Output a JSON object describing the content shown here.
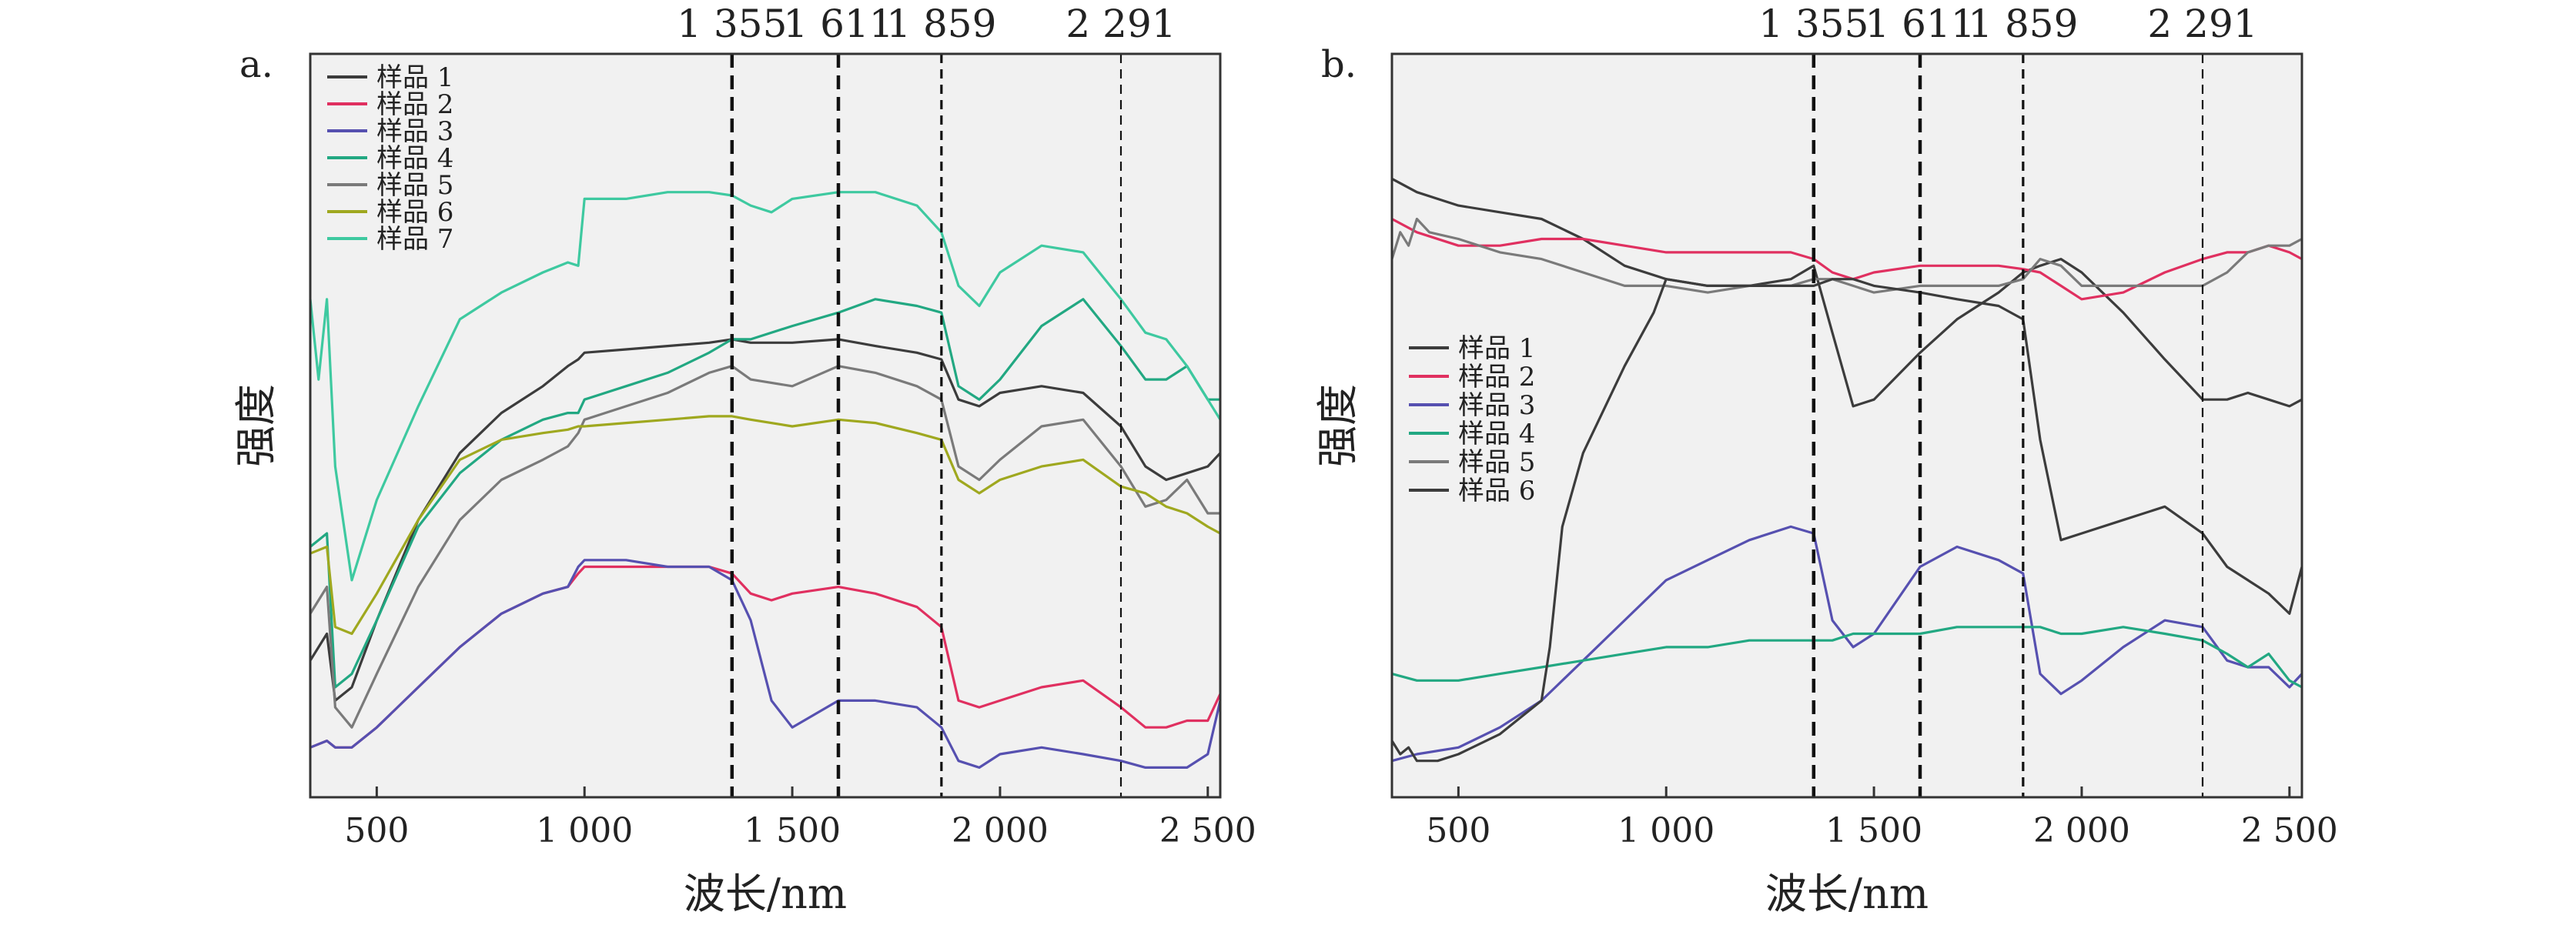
{
  "colors": {
    "sample1": "#3c3c3c",
    "sample2": "#e03060",
    "sample3": "#5650b0",
    "sample4": "#22a882",
    "sample5": "#7a7a7a",
    "sample6": "#9fa81f",
    "sample7": "#3ec9a0",
    "frame": "#333333",
    "plot_bg": "#f1f1f1",
    "guide": "#111111"
  },
  "chart_data": [
    {
      "panel_label": "a.",
      "type": "line",
      "xlabel": "波长/nm",
      "ylabel": "强度",
      "xlim": [
        340,
        2530
      ],
      "ylim": [
        0,
        1
      ],
      "x_ticks": [
        500,
        1000,
        1500,
        2000,
        2500
      ],
      "x_tick_labels": [
        "500",
        "1 000",
        "1 500",
        "2 000",
        "2 500"
      ],
      "y_ticks_shown": false,
      "grid": false,
      "legend_position": "top-left",
      "vlines": [
        {
          "x": 1355,
          "label": "1 355"
        },
        {
          "x": 1611,
          "label": "1 611"
        },
        {
          "x": 1859,
          "label": "1 859"
        },
        {
          "x": 2291,
          "label": "2 291"
        }
      ],
      "series": [
        {
          "name": "样品 1",
          "color_key": "sample1",
          "x": [
            340,
            380,
            400,
            440,
            500,
            600,
            700,
            800,
            900,
            960,
            985,
            1000,
            1100,
            1200,
            1300,
            1355,
            1400,
            1500,
            1611,
            1700,
            1800,
            1859,
            1900,
            1950,
            2000,
            2100,
            2200,
            2291,
            2350,
            2400,
            2450,
            2500,
            2530
          ],
          "y": [
            0.16,
            0.2,
            0.1,
            0.12,
            0.22,
            0.37,
            0.47,
            0.53,
            0.57,
            0.6,
            0.61,
            0.62,
            0.625,
            0.63,
            0.635,
            0.64,
            0.635,
            0.635,
            0.64,
            0.63,
            0.62,
            0.61,
            0.55,
            0.54,
            0.56,
            0.57,
            0.56,
            0.51,
            0.45,
            0.43,
            0.44,
            0.45,
            0.47
          ]
        },
        {
          "name": "样品 2",
          "color_key": "sample2",
          "x": [
            340,
            380,
            400,
            440,
            500,
            600,
            700,
            800,
            900,
            960,
            985,
            1000,
            1100,
            1200,
            1300,
            1355,
            1400,
            1450,
            1500,
            1611,
            1700,
            1800,
            1859,
            1900,
            1950,
            2000,
            2100,
            2200,
            2291,
            2350,
            2400,
            2450,
            2500,
            2530
          ],
          "y": [
            0.03,
            0.04,
            0.03,
            0.03,
            0.06,
            0.12,
            0.18,
            0.23,
            0.26,
            0.27,
            0.29,
            0.3,
            0.3,
            0.3,
            0.3,
            0.29,
            0.26,
            0.25,
            0.26,
            0.27,
            0.26,
            0.24,
            0.21,
            0.1,
            0.09,
            0.1,
            0.12,
            0.13,
            0.09,
            0.06,
            0.06,
            0.07,
            0.07,
            0.11
          ]
        },
        {
          "name": "样品 3",
          "color_key": "sample3",
          "x": [
            340,
            380,
            400,
            440,
            500,
            600,
            700,
            800,
            900,
            960,
            985,
            1000,
            1100,
            1200,
            1300,
            1355,
            1400,
            1450,
            1500,
            1611,
            1700,
            1800,
            1859,
            1900,
            1950,
            2000,
            2100,
            2200,
            2291,
            2350,
            2400,
            2450,
            2500,
            2530
          ],
          "y": [
            0.03,
            0.04,
            0.03,
            0.03,
            0.06,
            0.12,
            0.18,
            0.23,
            0.26,
            0.27,
            0.3,
            0.31,
            0.31,
            0.3,
            0.3,
            0.28,
            0.22,
            0.1,
            0.06,
            0.1,
            0.1,
            0.09,
            0.06,
            0.01,
            0.0,
            0.02,
            0.03,
            0.02,
            0.01,
            0.0,
            0.0,
            0.0,
            0.02,
            0.1
          ]
        },
        {
          "name": "样品 4",
          "color_key": "sample4",
          "x": [
            340,
            380,
            400,
            440,
            500,
            600,
            700,
            800,
            900,
            960,
            985,
            1000,
            1100,
            1200,
            1300,
            1355,
            1400,
            1500,
            1611,
            1700,
            1800,
            1859,
            1900,
            1950,
            2000,
            2100,
            2200,
            2291,
            2350,
            2400,
            2450,
            2500,
            2530
          ],
          "y": [
            0.33,
            0.35,
            0.12,
            0.14,
            0.22,
            0.36,
            0.44,
            0.49,
            0.52,
            0.53,
            0.53,
            0.55,
            0.57,
            0.59,
            0.62,
            0.64,
            0.64,
            0.66,
            0.68,
            0.7,
            0.69,
            0.68,
            0.57,
            0.55,
            0.58,
            0.66,
            0.7,
            0.63,
            0.58,
            0.58,
            0.6,
            0.55,
            0.55
          ]
        },
        {
          "name": "样品 5",
          "color_key": "sample5",
          "x": [
            340,
            380,
            400,
            440,
            500,
            600,
            700,
            800,
            900,
            960,
            985,
            1000,
            1100,
            1200,
            1300,
            1355,
            1400,
            1500,
            1611,
            1700,
            1800,
            1859,
            1900,
            1950,
            2000,
            2100,
            2200,
            2291,
            2350,
            2400,
            2450,
            2500,
            2530
          ],
          "y": [
            0.23,
            0.27,
            0.09,
            0.06,
            0.14,
            0.27,
            0.37,
            0.43,
            0.46,
            0.48,
            0.5,
            0.52,
            0.54,
            0.56,
            0.59,
            0.6,
            0.58,
            0.57,
            0.6,
            0.59,
            0.57,
            0.55,
            0.45,
            0.43,
            0.46,
            0.51,
            0.52,
            0.45,
            0.39,
            0.4,
            0.43,
            0.38,
            0.38
          ]
        },
        {
          "name": "样品 6",
          "color_key": "sample6",
          "x": [
            340,
            380,
            400,
            440,
            500,
            600,
            700,
            800,
            900,
            960,
            985,
            1000,
            1100,
            1200,
            1300,
            1355,
            1400,
            1500,
            1611,
            1700,
            1800,
            1859,
            1900,
            1950,
            2000,
            2100,
            2200,
            2291,
            2350,
            2400,
            2450,
            2500,
            2530
          ],
          "y": [
            0.32,
            0.33,
            0.21,
            0.2,
            0.26,
            0.37,
            0.46,
            0.49,
            0.5,
            0.505,
            0.51,
            0.51,
            0.515,
            0.52,
            0.525,
            0.525,
            0.52,
            0.51,
            0.52,
            0.515,
            0.5,
            0.49,
            0.43,
            0.41,
            0.43,
            0.45,
            0.46,
            0.42,
            0.41,
            0.39,
            0.38,
            0.36,
            0.35
          ]
        },
        {
          "name": "样品 7",
          "color_key": "sample7",
          "x": [
            340,
            360,
            380,
            400,
            440,
            500,
            600,
            700,
            800,
            900,
            960,
            985,
            1000,
            1100,
            1200,
            1300,
            1355,
            1400,
            1450,
            1500,
            1611,
            1700,
            1800,
            1859,
            1900,
            1950,
            2000,
            2100,
            2200,
            2291,
            2350,
            2400,
            2450,
            2500,
            2530
          ],
          "y": [
            0.7,
            0.58,
            0.7,
            0.45,
            0.28,
            0.4,
            0.54,
            0.67,
            0.71,
            0.74,
            0.755,
            0.75,
            0.85,
            0.85,
            0.86,
            0.86,
            0.855,
            0.84,
            0.83,
            0.85,
            0.86,
            0.86,
            0.84,
            0.8,
            0.72,
            0.69,
            0.74,
            0.78,
            0.77,
            0.7,
            0.65,
            0.64,
            0.6,
            0.55,
            0.52
          ]
        }
      ]
    },
    {
      "panel_label": "b.",
      "type": "line",
      "xlabel": "波长/nm",
      "ylabel": "强度",
      "xlim": [
        340,
        2530
      ],
      "ylim": [
        0,
        1
      ],
      "x_ticks": [
        500,
        1000,
        1500,
        2000,
        2500
      ],
      "x_tick_labels": [
        "500",
        "1 000",
        "1 500",
        "2 000",
        "2 500"
      ],
      "y_ticks_shown": false,
      "grid": false,
      "legend_position": "center-left",
      "vlines": [
        {
          "x": 1355,
          "label": "1 355"
        },
        {
          "x": 1611,
          "label": "1 611"
        },
        {
          "x": 1859,
          "label": "1 859"
        },
        {
          "x": 2291,
          "label": "2 291"
        }
      ],
      "series": [
        {
          "name": "样品 1",
          "color_key": "sample1",
          "x": [
            340,
            400,
            500,
            600,
            700,
            800,
            900,
            1000,
            1100,
            1200,
            1300,
            1355,
            1400,
            1450,
            1500,
            1611,
            1700,
            1800,
            1859,
            1900,
            1950,
            2000,
            2100,
            2200,
            2291,
            2350,
            2400,
            2450,
            2500,
            2530
          ],
          "y": [
            0.88,
            0.86,
            0.84,
            0.83,
            0.82,
            0.79,
            0.75,
            0.73,
            0.72,
            0.72,
            0.73,
            0.75,
            0.65,
            0.54,
            0.55,
            0.62,
            0.67,
            0.71,
            0.74,
            0.75,
            0.76,
            0.74,
            0.68,
            0.61,
            0.55,
            0.55,
            0.56,
            0.55,
            0.54,
            0.55
          ]
        },
        {
          "name": "样品 2",
          "color_key": "sample2",
          "x": [
            340,
            400,
            500,
            600,
            700,
            800,
            900,
            1000,
            1100,
            1200,
            1300,
            1355,
            1400,
            1450,
            1500,
            1611,
            1700,
            1800,
            1859,
            1900,
            1950,
            2000,
            2100,
            2200,
            2291,
            2350,
            2400,
            2450,
            2500,
            2530
          ],
          "y": [
            0.82,
            0.8,
            0.78,
            0.78,
            0.79,
            0.79,
            0.78,
            0.77,
            0.77,
            0.77,
            0.77,
            0.76,
            0.74,
            0.73,
            0.74,
            0.75,
            0.75,
            0.75,
            0.745,
            0.74,
            0.72,
            0.7,
            0.71,
            0.74,
            0.76,
            0.77,
            0.77,
            0.78,
            0.77,
            0.76
          ]
        },
        {
          "name": "样品 3",
          "color_key": "sample3",
          "x": [
            340,
            400,
            500,
            600,
            700,
            800,
            900,
            1000,
            1100,
            1200,
            1300,
            1355,
            1400,
            1450,
            1500,
            1611,
            1700,
            1800,
            1859,
            1900,
            1950,
            2000,
            2100,
            2200,
            2291,
            2350,
            2400,
            2450,
            2500,
            2530
          ],
          "y": [
            0.01,
            0.02,
            0.03,
            0.06,
            0.1,
            0.16,
            0.22,
            0.28,
            0.31,
            0.34,
            0.36,
            0.35,
            0.22,
            0.18,
            0.2,
            0.3,
            0.33,
            0.31,
            0.29,
            0.14,
            0.11,
            0.13,
            0.18,
            0.22,
            0.21,
            0.16,
            0.15,
            0.15,
            0.12,
            0.14
          ]
        },
        {
          "name": "样品 4",
          "color_key": "sample4",
          "x": [
            340,
            400,
            500,
            600,
            700,
            800,
            900,
            1000,
            1100,
            1200,
            1300,
            1355,
            1400,
            1450,
            1500,
            1611,
            1700,
            1800,
            1859,
            1900,
            1950,
            2000,
            2100,
            2200,
            2291,
            2350,
            2400,
            2450,
            2500,
            2530
          ],
          "y": [
            0.14,
            0.13,
            0.13,
            0.14,
            0.15,
            0.16,
            0.17,
            0.18,
            0.18,
            0.19,
            0.19,
            0.19,
            0.19,
            0.2,
            0.2,
            0.2,
            0.21,
            0.21,
            0.21,
            0.21,
            0.2,
            0.2,
            0.21,
            0.2,
            0.19,
            0.17,
            0.15,
            0.17,
            0.13,
            0.12
          ]
        },
        {
          "name": "样品 5",
          "color_key": "sample5",
          "x": [
            340,
            360,
            380,
            400,
            430,
            500,
            600,
            700,
            800,
            900,
            1000,
            1100,
            1200,
            1300,
            1355,
            1400,
            1450,
            1500,
            1611,
            1700,
            1800,
            1859,
            1900,
            1950,
            2000,
            2100,
            2200,
            2291,
            2350,
            2400,
            2450,
            2500,
            2530
          ],
          "y": [
            0.76,
            0.8,
            0.78,
            0.82,
            0.8,
            0.79,
            0.77,
            0.76,
            0.74,
            0.72,
            0.72,
            0.71,
            0.72,
            0.72,
            0.73,
            0.73,
            0.72,
            0.71,
            0.72,
            0.72,
            0.72,
            0.73,
            0.76,
            0.75,
            0.72,
            0.72,
            0.72,
            0.72,
            0.74,
            0.77,
            0.78,
            0.78,
            0.79
          ]
        },
        {
          "name": "样品 6",
          "color_key": "sample1",
          "x": [
            340,
            360,
            380,
            400,
            450,
            500,
            600,
            680,
            700,
            720,
            750,
            800,
            900,
            970,
            1000,
            1100,
            1200,
            1300,
            1355,
            1400,
            1450,
            1500,
            1611,
            1700,
            1800,
            1859,
            1900,
            1950,
            2000,
            2100,
            2200,
            2291,
            2350,
            2400,
            2450,
            2500,
            2530
          ],
          "y": [
            0.04,
            0.02,
            0.03,
            0.01,
            0.01,
            0.02,
            0.05,
            0.09,
            0.1,
            0.18,
            0.36,
            0.47,
            0.6,
            0.68,
            0.73,
            0.72,
            0.72,
            0.72,
            0.72,
            0.73,
            0.73,
            0.72,
            0.71,
            0.7,
            0.69,
            0.67,
            0.49,
            0.34,
            0.35,
            0.37,
            0.39,
            0.35,
            0.3,
            0.28,
            0.26,
            0.23,
            0.3
          ]
        }
      ]
    }
  ]
}
